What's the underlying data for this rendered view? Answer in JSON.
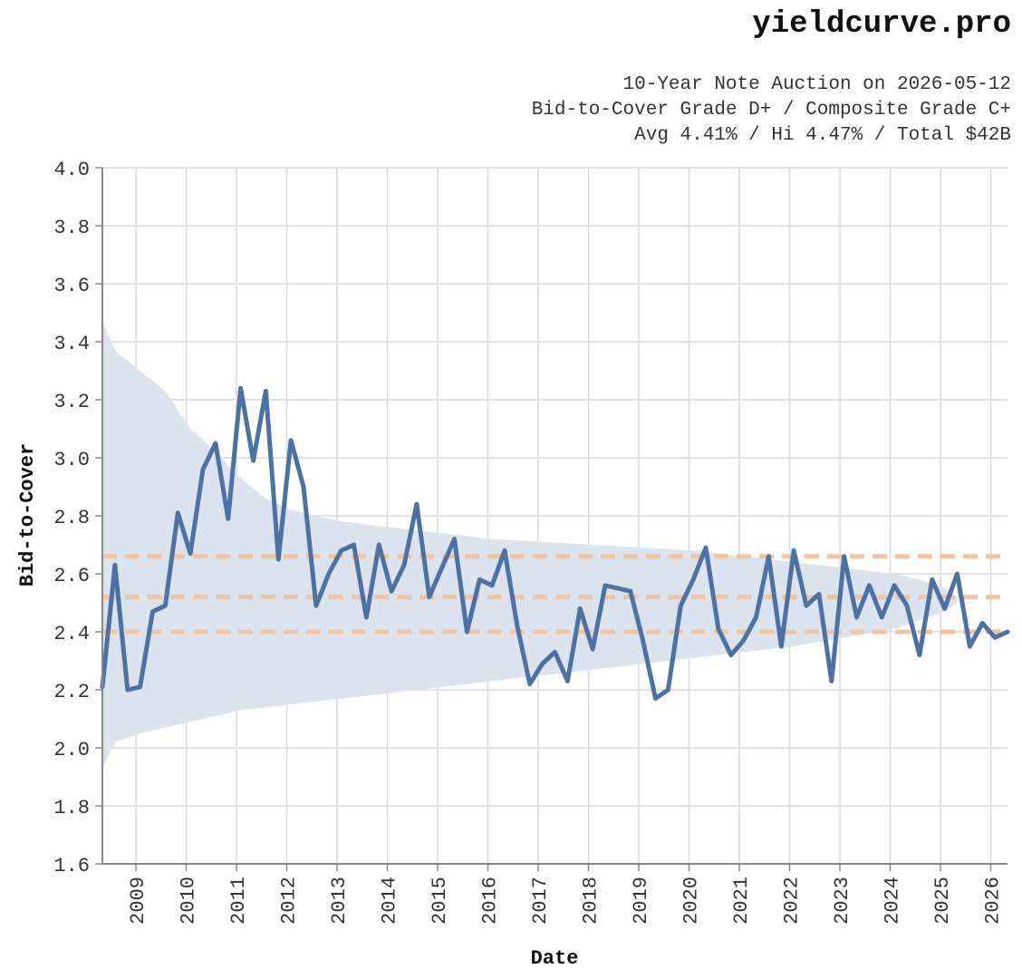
{
  "brand": "yieldcurve.pro",
  "subtitle_lines": [
    "10-Year Note Auction on 2026-05-12",
    "Bid-to-Cover Grade D+ / Composite Grade C+",
    "Avg 4.41% / Hi 4.47% / Total $42B"
  ],
  "colors": {
    "line": "#4a72a4",
    "band": "#dbe3ee",
    "reference": "#f2c4a0",
    "grid": "#d9d9d9",
    "axis": "#888888"
  },
  "chart_data": {
    "type": "line",
    "xlabel": "Date",
    "ylabel": "Bid-to-Cover",
    "ylim": [
      1.6,
      4.0
    ],
    "y_ticks": [
      "4.0",
      "3.8",
      "3.6",
      "3.4",
      "3.2",
      "3.0",
      "2.8",
      "2.6",
      "2.4",
      "2.2",
      "2.0",
      "1.8",
      "1.6"
    ],
    "x_ticks": [
      "2009",
      "2010",
      "2011",
      "2012",
      "2013",
      "2014",
      "2015",
      "2016",
      "2017",
      "2018",
      "2019",
      "2020",
      "2021",
      "2022",
      "2023",
      "2024",
      "2025",
      "2026"
    ],
    "x_range": [
      "2008-05",
      "2026-05"
    ],
    "grid": true,
    "reference_lines": [
      2.66,
      2.52,
      2.4
    ],
    "series": [
      {
        "x": [
          "2008-05",
          "2008-08",
          "2008-11",
          "2009-02",
          "2009-05",
          "2009-08",
          "2009-11",
          "2010-02",
          "2010-05",
          "2010-08",
          "2010-11",
          "2011-02",
          "2011-05",
          "2011-08",
          "2011-11",
          "2012-02",
          "2012-05",
          "2012-08",
          "2012-11",
          "2013-02",
          "2013-05",
          "2013-08",
          "2013-11",
          "2014-02",
          "2014-05",
          "2014-08",
          "2014-11",
          "2015-02",
          "2015-05",
          "2015-08",
          "2015-11",
          "2016-02",
          "2016-05",
          "2016-08",
          "2016-11",
          "2017-02",
          "2017-05",
          "2017-08",
          "2017-11",
          "2018-02",
          "2018-05",
          "2018-08",
          "2018-11",
          "2019-02",
          "2019-05",
          "2019-08",
          "2019-11",
          "2020-02",
          "2020-05",
          "2020-08",
          "2020-11",
          "2021-02",
          "2021-05",
          "2021-08",
          "2021-11",
          "2022-02",
          "2022-05",
          "2022-08",
          "2022-11",
          "2023-02",
          "2023-05",
          "2023-08",
          "2023-11",
          "2024-02",
          "2024-05",
          "2024-08",
          "2024-11",
          "2025-02",
          "2025-05",
          "2025-08",
          "2025-11",
          "2026-02",
          "2026-05"
        ],
        "y": [
          2.21,
          2.63,
          2.2,
          2.21,
          2.47,
          2.49,
          2.81,
          2.67,
          2.96,
          3.05,
          2.79,
          3.24,
          2.99,
          3.23,
          2.65,
          3.06,
          2.9,
          2.49,
          2.6,
          2.68,
          2.7,
          2.45,
          2.7,
          2.54,
          2.63,
          2.84,
          2.52,
          2.62,
          2.72,
          2.4,
          2.58,
          2.56,
          2.68,
          2.42,
          2.22,
          2.29,
          2.33,
          2.23,
          2.48,
          2.34,
          2.56,
          2.55,
          2.54,
          2.37,
          2.17,
          2.2,
          2.49,
          2.58,
          2.69,
          2.41,
          2.32,
          2.37,
          2.45,
          2.66,
          2.35,
          2.68,
          2.49,
          2.53,
          2.23,
          2.66,
          2.45,
          2.56,
          2.45,
          2.56,
          2.49,
          2.32,
          2.58,
          2.48,
          2.6,
          2.35,
          2.43,
          2.38,
          2.4
        ]
      }
    ],
    "band": {
      "x": [
        "2008-05",
        "2008-08",
        "2009-02",
        "2009-08",
        "2010-02",
        "2010-08",
        "2011-02",
        "2011-08",
        "2012-02",
        "2013-02",
        "2014-02",
        "2015-02",
        "2016-02",
        "2017-02",
        "2018-02",
        "2019-02",
        "2020-02",
        "2021-02",
        "2022-02",
        "2023-02",
        "2024-02",
        "2024-08",
        "2025-02",
        "2025-05"
      ],
      "upper": [
        3.47,
        3.37,
        3.3,
        3.23,
        3.1,
        3.02,
        2.93,
        2.86,
        2.82,
        2.78,
        2.76,
        2.74,
        2.72,
        2.71,
        2.7,
        2.69,
        2.68,
        2.66,
        2.64,
        2.62,
        2.6,
        2.58,
        2.55,
        2.52
      ],
      "lower": [
        1.93,
        2.02,
        2.05,
        2.07,
        2.09,
        2.11,
        2.13,
        2.14,
        2.15,
        2.17,
        2.19,
        2.21,
        2.23,
        2.25,
        2.27,
        2.29,
        2.31,
        2.33,
        2.35,
        2.38,
        2.41,
        2.44,
        2.47,
        2.5
      ]
    }
  }
}
